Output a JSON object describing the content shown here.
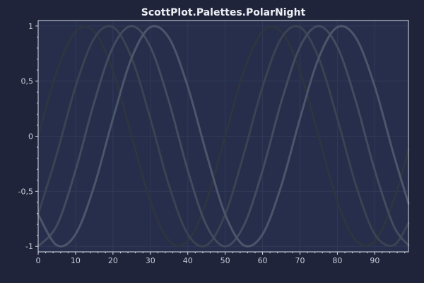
{
  "chart_data": {
    "type": "line",
    "title": "ScottPlot.Palettes.PolarNight",
    "xlabel": "",
    "ylabel": "",
    "xlim": [
      0,
      99
    ],
    "ylim": [
      -1.05,
      1.05
    ],
    "grid": true,
    "x_ticks": [
      0,
      10,
      20,
      30,
      40,
      50,
      60,
      70,
      80,
      90
    ],
    "y_ticks": [
      {
        "value": 1,
        "label": "1"
      },
      {
        "value": 0.5,
        "label": "0,5"
      },
      {
        "value": 0,
        "label": "0"
      },
      {
        "value": -0.5,
        "label": "-0,5"
      },
      {
        "value": -1,
        "label": "-1"
      }
    ],
    "x": [
      0,
      5,
      10,
      15,
      20,
      25,
      30,
      35,
      40,
      45,
      50,
      55,
      60,
      65,
      70,
      75,
      80,
      85,
      90,
      95,
      99
    ],
    "series": [
      {
        "color": "#2e3440",
        "values": [
          0.0,
          0.59,
          0.95,
          0.95,
          0.59,
          0.0,
          -0.59,
          -0.95,
          -0.95,
          -0.59,
          0.0,
          0.59,
          0.95,
          0.95,
          0.59,
          0.0,
          -0.59,
          -0.95,
          -0.95,
          -0.59,
          -0.12
        ]
      },
      {
        "color": "#3b4252",
        "values": [
          -0.71,
          -0.16,
          0.45,
          0.89,
          0.99,
          0.71,
          0.16,
          -0.45,
          -0.89,
          -0.99,
          -0.71,
          -0.16,
          0.45,
          0.89,
          0.99,
          0.71,
          0.16,
          -0.45,
          -0.89,
          -0.99,
          -0.79
        ]
      },
      {
        "color": "#434c5e",
        "values": [
          -1.0,
          -0.81,
          -0.31,
          0.31,
          0.81,
          1.0,
          0.81,
          0.31,
          -0.31,
          -0.81,
          -1.0,
          -0.81,
          -0.31,
          0.31,
          0.81,
          1.0,
          0.81,
          0.31,
          -0.31,
          -0.81,
          -0.99
        ]
      },
      {
        "color": "#4c566a",
        "values": [
          -0.71,
          -0.99,
          -0.89,
          -0.45,
          0.16,
          0.71,
          0.99,
          0.89,
          0.45,
          -0.16,
          -0.71,
          -0.99,
          -0.89,
          -0.45,
          0.16,
          0.71,
          0.99,
          0.89,
          0.45,
          -0.16,
          -0.61
        ]
      }
    ],
    "colors": {
      "figure_background": "#1f243a",
      "plot_background": "#262e4b",
      "grid": "#303a58",
      "frame": "#d8dee9",
      "tick_text": "#c9ced9",
      "title_text": "#eceff4"
    }
  }
}
